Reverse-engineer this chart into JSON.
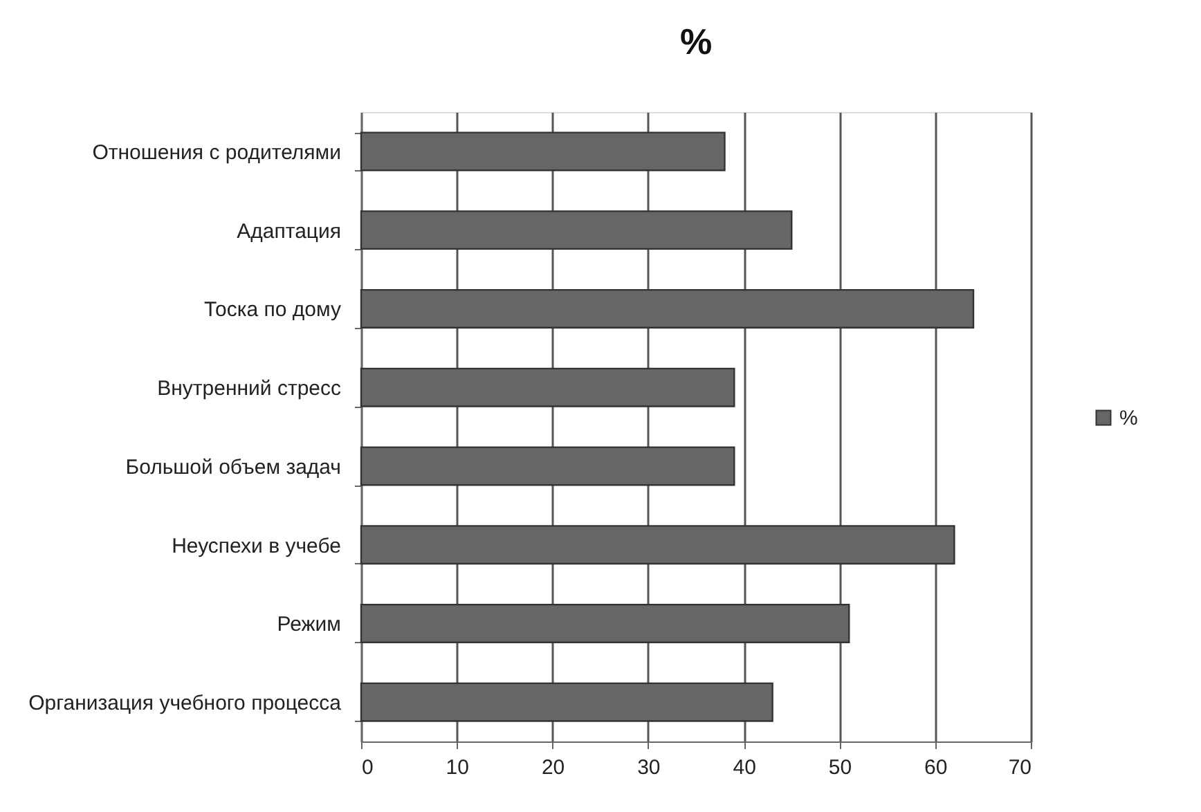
{
  "chart_data": {
    "type": "bar",
    "orientation": "horizontal",
    "title": "%",
    "categories": [
      "Отношения с родителями",
      "Адаптация",
      "Тоска по дому",
      "Внутренний стресс",
      "Большой объем задач",
      "Неуспехи в учебе",
      "Режим",
      "Организация учебного процесса"
    ],
    "series": [
      {
        "name": "%",
        "color": "#666666",
        "values": [
          38,
          45,
          64,
          39,
          39,
          62,
          51,
          43
        ]
      }
    ],
    "xlim": [
      0,
      70
    ],
    "xticks": [
      0,
      10,
      20,
      30,
      40,
      50,
      60,
      70
    ],
    "grid": "x",
    "legend": "right"
  }
}
